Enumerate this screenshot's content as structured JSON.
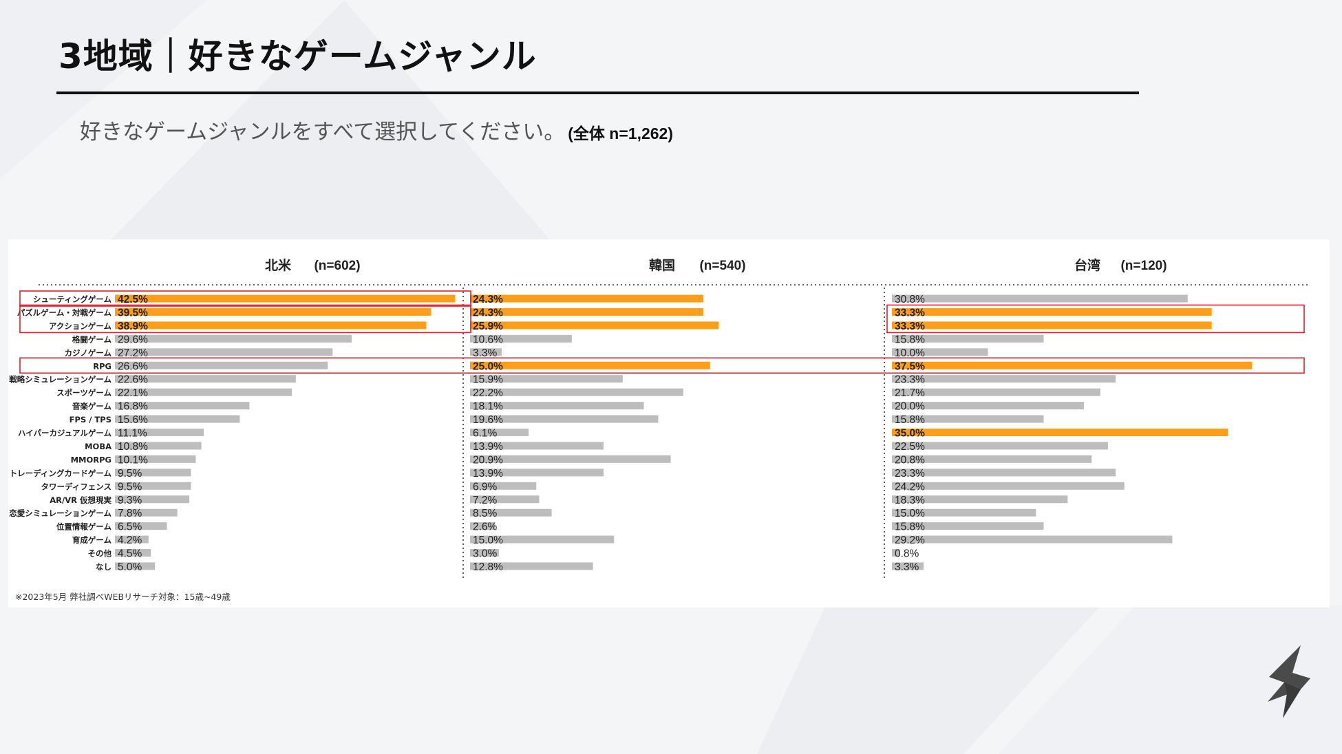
{
  "slide": {
    "title": "3地域｜好きなゲームジャンル",
    "question": "好きなゲームジャンルをすべて選択してください。",
    "sample_note": "(全体 n=1,262)",
    "footnote": "※2023年5月 弊社調べWEBリサーチ対象：15歳~49歳"
  },
  "logo": {
    "icon": "company-s-logo-icon"
  },
  "colors": {
    "highlight": "#FF9E1B",
    "normal": "#BDBDBD",
    "callout_box": "#E0202A"
  },
  "chart_data": {
    "type": "bar",
    "orientation": "horizontal",
    "categories": [
      "シューティングゲーム",
      "パズルゲーム・対戦ゲーム",
      "アクションゲーム",
      "格闘ゲーム",
      "カジノゲーム",
      "RPG",
      "戦略シミュレーションゲーム",
      "スポーツゲーム",
      "音楽ゲーム",
      "FPS / TPS",
      "ハイパーカジュアルゲーム",
      "MOBA",
      "MMORPG",
      "トレーディングカードゲーム",
      "タワーディフェンス",
      "AR/VR 仮想現実",
      "恋愛シミュレーションゲーム",
      "位置情報ゲーム",
      "育成ゲーム",
      "その他",
      "なし"
    ],
    "value_unit": "%",
    "highlighted_rows_boxed": [
      "シューティングゲーム",
      "パズルゲーム・対戦ゲーム",
      "アクションゲーム",
      "RPG"
    ],
    "series": [
      {
        "name": "北米",
        "sample": "(n=602)",
        "values": [
          42.5,
          39.5,
          38.9,
          29.6,
          27.2,
          26.6,
          22.6,
          22.1,
          16.8,
          15.6,
          11.1,
          10.8,
          10.1,
          9.5,
          9.5,
          9.3,
          7.8,
          6.5,
          4.2,
          4.5,
          5.0
        ],
        "labels": [
          "42.5%",
          "39.5%",
          "38.9%",
          "29.6%",
          "27.2%",
          "26.6%",
          "22.6%",
          "22.1%",
          "16.8%",
          "15.6%",
          "11.1%",
          "10.8%",
          "10.1%",
          "9.5%",
          "9.5%",
          "9.3%",
          "7.8%",
          "6.5%",
          "4.2%",
          "4.5%",
          "5.0%"
        ],
        "highlight": [
          true,
          true,
          true,
          false,
          false,
          false,
          false,
          false,
          false,
          false,
          false,
          false,
          false,
          false,
          false,
          false,
          false,
          false,
          false,
          false,
          false
        ]
      },
      {
        "name": "韓国",
        "sample": "(n=540)",
        "values": [
          24.3,
          24.3,
          25.9,
          10.6,
          3.3,
          25.0,
          15.9,
          22.2,
          18.1,
          19.6,
          6.1,
          13.9,
          20.9,
          13.9,
          6.9,
          7.2,
          8.5,
          2.6,
          15.0,
          3.0,
          12.8
        ],
        "labels": [
          "24.3%",
          "24.3%",
          "25.9%",
          "10.6%",
          "3.3%",
          "25.0%",
          "15.9%",
          "22.2%",
          "18.1%",
          "19.6%",
          "6.1%",
          "13.9%",
          "20.9%",
          "13.9%",
          "6.9%",
          "7.2%",
          "8.5%",
          "2.6%",
          "15.0%",
          "3.0%",
          "12.8%"
        ],
        "highlight": [
          true,
          true,
          true,
          false,
          false,
          true,
          false,
          false,
          false,
          false,
          false,
          false,
          false,
          false,
          false,
          false,
          false,
          false,
          false,
          false,
          false
        ]
      },
      {
        "name": "台湾",
        "sample": "(n=120)",
        "values": [
          30.8,
          33.3,
          33.3,
          15.8,
          10.0,
          37.5,
          23.3,
          21.7,
          20.0,
          15.8,
          35.0,
          22.5,
          20.8,
          23.3,
          24.2,
          18.3,
          15.0,
          15.8,
          29.2,
          0.8,
          3.3
        ],
        "labels": [
          "30.8%",
          "33.3%",
          "33.3%",
          "15.8%",
          "10.0%",
          "37.5%",
          "23.3%",
          "21.7%",
          "20.0%",
          "15.8%",
          "35.0%",
          "22.5%",
          "20.8%",
          "23.3%",
          "24.2%",
          "18.3%",
          "15.0%",
          "15.8%",
          "29.2%",
          "0.8%",
          "3.3%"
        ],
        "highlight": [
          false,
          true,
          true,
          false,
          false,
          true,
          false,
          false,
          false,
          false,
          true,
          false,
          false,
          false,
          false,
          false,
          false,
          false,
          false,
          false,
          false
        ]
      }
    ]
  }
}
